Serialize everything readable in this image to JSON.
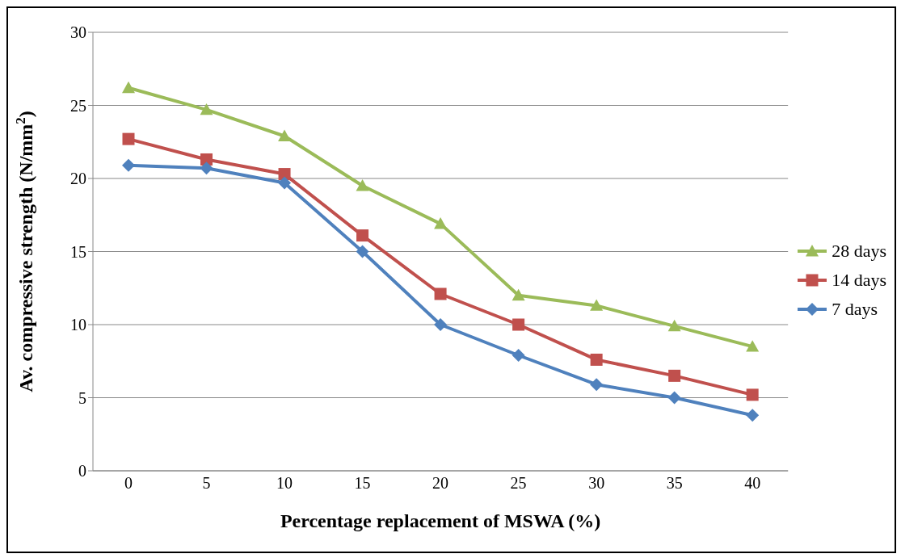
{
  "chart_data": {
    "type": "line",
    "xlabel": "Percentage replacement of MSWA (%)",
    "ylabel": "Av. compressive strength (N/mm$^{2}$)",
    "categories": [
      "0",
      "5",
      "10",
      "15",
      "20",
      "25",
      "30",
      "35",
      "40"
    ],
    "series": [
      {
        "name": "28 days",
        "color": "#9bbb59",
        "marker": "triangle",
        "values": [
          26.2,
          24.7,
          22.9,
          19.5,
          16.9,
          12.0,
          11.3,
          9.9,
          8.5
        ]
      },
      {
        "name": "14 days",
        "color": "#c0504d",
        "marker": "square",
        "values": [
          22.7,
          21.3,
          20.3,
          16.1,
          12.1,
          10.0,
          7.6,
          6.5,
          5.2
        ]
      },
      {
        "name": "7 days",
        "color": "#4f81bd",
        "marker": "diamond",
        "values": [
          20.9,
          20.7,
          19.7,
          15.0,
          10.0,
          7.9,
          5.9,
          5.0,
          3.8
        ]
      }
    ],
    "ylim": [
      0,
      30
    ],
    "yticks": [
      0,
      5,
      10,
      15,
      20,
      25,
      30
    ],
    "grid": "y",
    "legend": "right",
    "line_style": "solid"
  }
}
